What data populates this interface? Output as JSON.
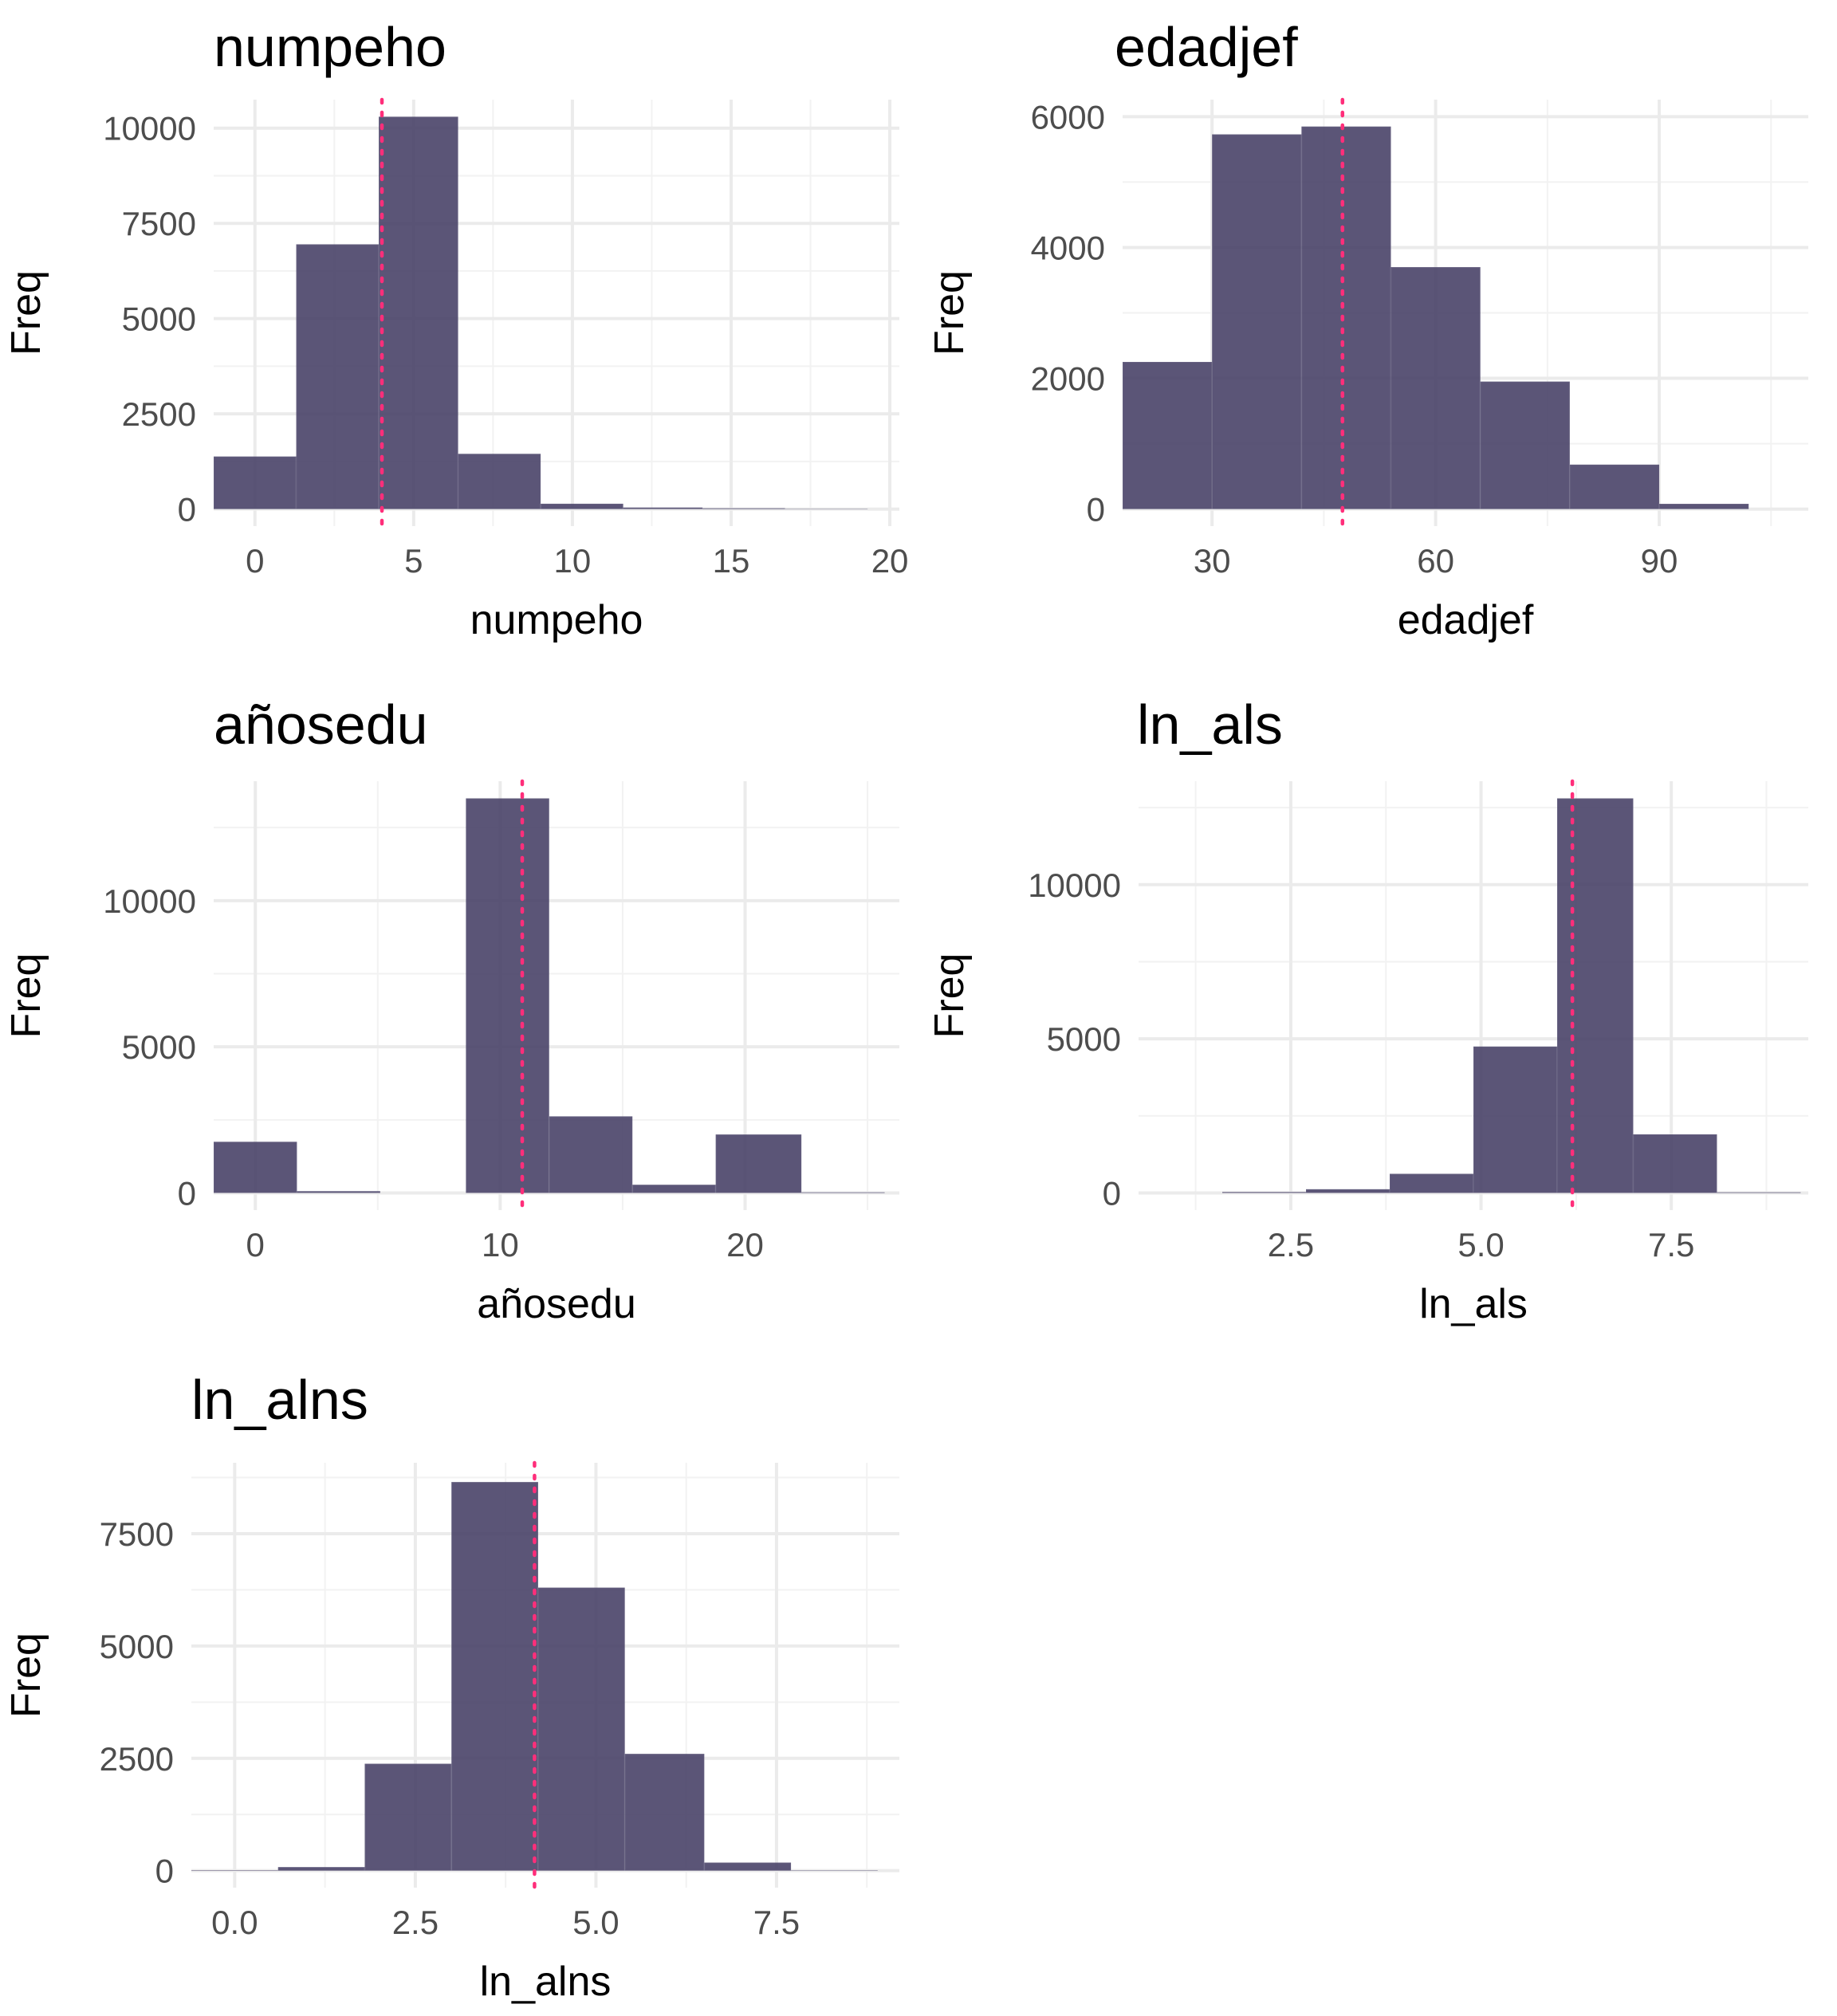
{
  "chart_data": [
    {
      "type": "bar",
      "title": "numpeho",
      "xlabel": "numpeho",
      "ylabel": "Freq",
      "xlim": [
        -1.3,
        20.3
      ],
      "ylim": [
        0,
        10300
      ],
      "xticks": [
        0,
        5,
        10,
        15,
        20
      ],
      "xtick_labels": [
        "0",
        "5",
        "10",
        "15",
        "20"
      ],
      "yticks": [
        0,
        2500,
        5000,
        7500,
        10000
      ],
      "ytick_labels": [
        "0",
        "2500",
        "5000",
        "7500",
        "10000"
      ],
      "bins": [
        [
          -1.3,
          1.3
        ],
        [
          1.3,
          3.9
        ],
        [
          3.9,
          6.4
        ],
        [
          6.4,
          9.0
        ],
        [
          9.0,
          11.6
        ],
        [
          11.6,
          14.1
        ],
        [
          14.1,
          16.7
        ],
        [
          16.7,
          19.3
        ]
      ],
      "values": [
        1380,
        6950,
        10300,
        1450,
        140,
        40,
        20,
        8
      ],
      "mean_line": 4.0,
      "grid": true,
      "colors": {
        "bar": "#443d64",
        "mean": "#ff2e7a"
      }
    },
    {
      "type": "bar",
      "title": "edadjef",
      "xlabel": "edadjef",
      "ylabel": "Freq",
      "xlim": [
        18,
        110
      ],
      "ylim": [
        0,
        6000
      ],
      "xticks": [
        30,
        60,
        90
      ],
      "xtick_labels": [
        "30",
        "60",
        "90"
      ],
      "yticks": [
        0,
        2000,
        4000,
        6000
      ],
      "ytick_labels": [
        "0",
        "2000",
        "4000",
        "6000"
      ],
      "bins": [
        [
          18,
          30
        ],
        [
          30,
          42
        ],
        [
          42,
          54
        ],
        [
          54,
          66
        ],
        [
          66,
          78
        ],
        [
          78,
          90
        ],
        [
          90,
          102
        ]
      ],
      "values": [
        2250,
        5730,
        5850,
        3700,
        1950,
        680,
        80
      ],
      "mean_line": 47.5,
      "grid": true,
      "colors": {
        "bar": "#443d64",
        "mean": "#ff2e7a"
      }
    },
    {
      "type": "bar",
      "title": "añosedu",
      "xlabel": "añosedu",
      "ylabel": "Freq",
      "xlim": [
        -1.7,
        26.3
      ],
      "ylim": [
        0,
        13500
      ],
      "xticks": [
        0,
        10,
        20
      ],
      "xtick_labels": [
        "0",
        "10",
        "20"
      ],
      "yticks": [
        0,
        5000,
        10000
      ],
      "ytick_labels": [
        "0",
        "5000",
        "10000"
      ],
      "bins": [
        [
          -1.7,
          1.7
        ],
        [
          1.7,
          5.1
        ],
        [
          5.1,
          8.6
        ],
        [
          8.6,
          12.0
        ],
        [
          12.0,
          15.4
        ],
        [
          15.4,
          18.8
        ],
        [
          18.8,
          22.3
        ],
        [
          22.3,
          25.7
        ]
      ],
      "values": [
        1750,
        60,
        0,
        13500,
        2620,
        280,
        2000,
        20
      ],
      "mean_line": 10.9,
      "grid": true,
      "colors": {
        "bar": "#443d64",
        "mean": "#ff2e7a"
      }
    },
    {
      "type": "bar",
      "title": "ln_als",
      "xlabel": "ln_als",
      "ylabel": "Freq",
      "xlim": [
        0.5,
        9.3
      ],
      "ylim": [
        0,
        12800
      ],
      "xticks": [
        2.5,
        5.0,
        7.5
      ],
      "xtick_labels": [
        "2.5",
        "5.0",
        "7.5"
      ],
      "yticks": [
        0,
        5000,
        10000
      ],
      "ytick_labels": [
        "0",
        "5000",
        "10000"
      ],
      "bins": [
        [
          0.5,
          1.6
        ],
        [
          1.6,
          2.7
        ],
        [
          2.7,
          3.8
        ],
        [
          3.8,
          4.9
        ],
        [
          4.9,
          6.0
        ],
        [
          6.0,
          7.0
        ],
        [
          7.0,
          8.1
        ],
        [
          8.1,
          9.2
        ]
      ],
      "values": [
        0,
        30,
        120,
        620,
        4750,
        12800,
        1900,
        20
      ],
      "mean_line": 6.2,
      "grid": true,
      "colors": {
        "bar": "#443d64",
        "mean": "#ff2e7a"
      }
    },
    {
      "type": "bar",
      "title": "ln_alns",
      "xlabel": "ln_alns",
      "ylabel": "Freq",
      "xlim": [
        -0.6,
        9.2
      ],
      "ylim": [
        0,
        8700
      ],
      "xticks": [
        0.0,
        2.5,
        5.0,
        7.5
      ],
      "xtick_labels": [
        "0.0",
        "2.5",
        "5.0",
        "7.5"
      ],
      "yticks": [
        0,
        2500,
        5000,
        7500
      ],
      "ytick_labels": [
        "0",
        "2500",
        "5000",
        "7500"
      ],
      "bins": [
        [
          -0.6,
          0.6
        ],
        [
          0.6,
          1.8
        ],
        [
          1.8,
          3.0
        ],
        [
          3.0,
          4.2
        ],
        [
          4.2,
          5.4
        ],
        [
          5.4,
          6.5
        ],
        [
          6.5,
          7.7
        ],
        [
          7.7,
          8.9
        ]
      ],
      "values": [
        10,
        80,
        2380,
        8650,
        6300,
        2600,
        180,
        8
      ],
      "mean_line": 4.15,
      "grid": true,
      "colors": {
        "bar": "#443d64",
        "mean": "#ff2e7a"
      }
    }
  ]
}
